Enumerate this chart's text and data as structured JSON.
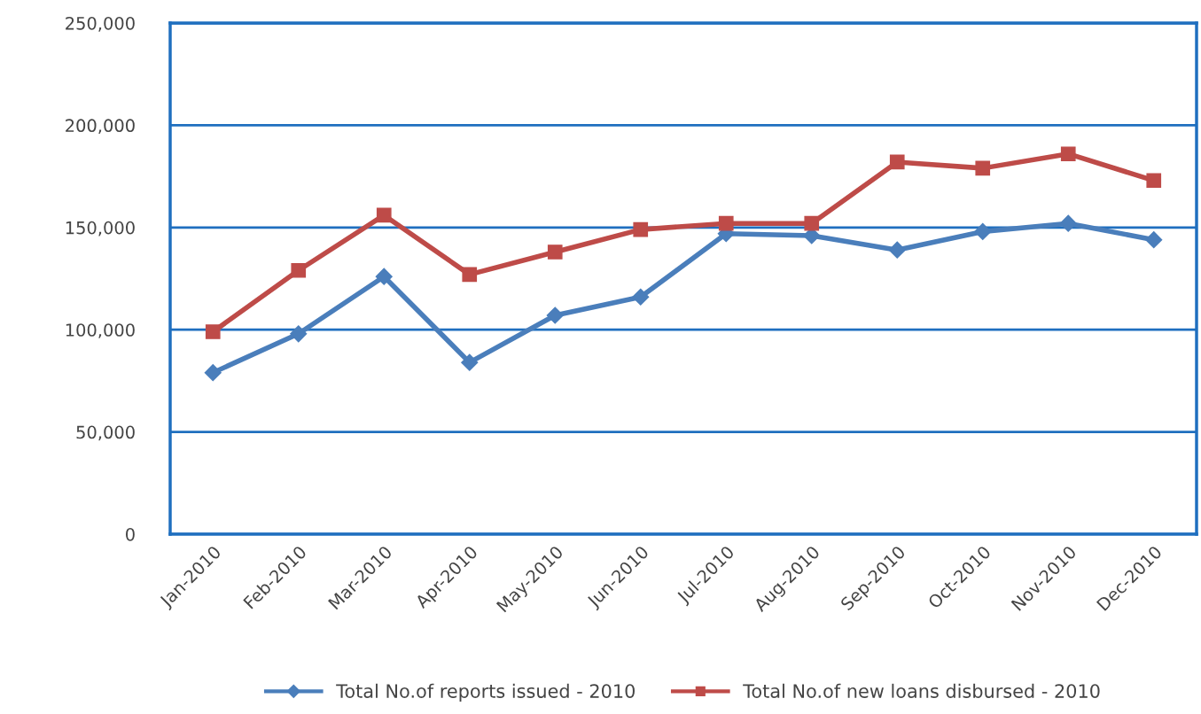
{
  "chart_data": {
    "type": "line",
    "categories": [
      "Jan-2010",
      "Feb-2010",
      "Mar-2010",
      "Apr-2010",
      "May-2010",
      "Jun-2010",
      "Jul-2010",
      "Aug-2010",
      "Sep-2010",
      "Oct-2010",
      "Nov-2010",
      "Dec-2010"
    ],
    "series": [
      {
        "name": "Total No.of reports issued - 2010",
        "color": "#4a7ebb",
        "marker": "diamond",
        "values": [
          79000,
          98000,
          126000,
          84000,
          107000,
          116000,
          147000,
          146000,
          139000,
          148000,
          152000,
          144000
        ]
      },
      {
        "name": "Total No.of new loans disbursed - 2010",
        "color": "#be4b48",
        "marker": "square",
        "values": [
          99000,
          129000,
          156000,
          127000,
          138000,
          149000,
          152000,
          152000,
          182000,
          179000,
          186000,
          173000
        ]
      }
    ],
    "ylim": [
      0,
      250000
    ],
    "yticks": [
      {
        "value": 0,
        "label": "0"
      },
      {
        "value": 50000,
        "label": "50,000"
      },
      {
        "value": 100000,
        "label": "100,000"
      },
      {
        "value": 150000,
        "label": "150,000"
      },
      {
        "value": 200000,
        "label": "200,000"
      },
      {
        "value": 250000,
        "label": "250,000"
      }
    ],
    "grid": "y",
    "legend": "bottom",
    "line_style": "solid"
  }
}
